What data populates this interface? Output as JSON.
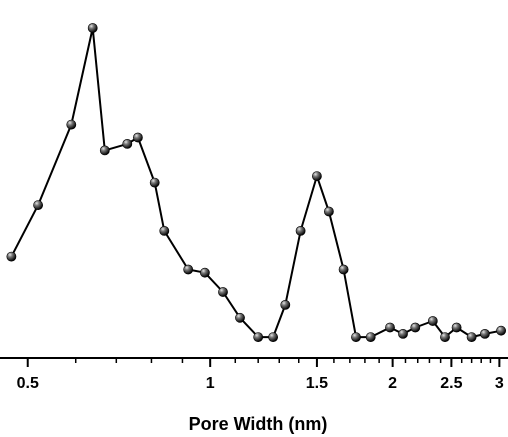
{
  "chart_data": {
    "type": "line",
    "title": "",
    "xlabel": "Pore Width (nm)",
    "ylabel": "",
    "x_scale": "log",
    "xlim": [
      0.45,
      3.1
    ],
    "ylim": [
      0,
      1
    ],
    "x_ticks": [
      0.5,
      1,
      1.5,
      2,
      2.5,
      3
    ],
    "x_tick_labels": [
      "0.5",
      "1",
      "1.5",
      "2",
      "2.5",
      "3"
    ],
    "line_color": "#000000",
    "marker": "sphere",
    "series": [
      {
        "x": [
          0.47,
          0.52,
          0.59,
          0.64,
          0.67,
          0.73,
          0.76,
          0.81,
          0.84,
          0.92,
          0.98,
          1.05,
          1.12,
          1.2,
          1.27,
          1.33,
          1.41,
          1.5,
          1.57,
          1.66,
          1.74,
          1.84,
          1.98,
          2.08,
          2.18,
          2.33,
          2.44,
          2.55,
          2.7,
          2.84,
          3.02
        ],
        "y": [
          0.29,
          0.45,
          0.7,
          1.0,
          0.62,
          0.64,
          0.66,
          0.52,
          0.37,
          0.25,
          0.24,
          0.18,
          0.1,
          0.04,
          0.04,
          0.14,
          0.37,
          0.54,
          0.43,
          0.25,
          0.04,
          0.04,
          0.07,
          0.05,
          0.07,
          0.09,
          0.04,
          0.07,
          0.04,
          0.05,
          0.06
        ]
      }
    ]
  }
}
